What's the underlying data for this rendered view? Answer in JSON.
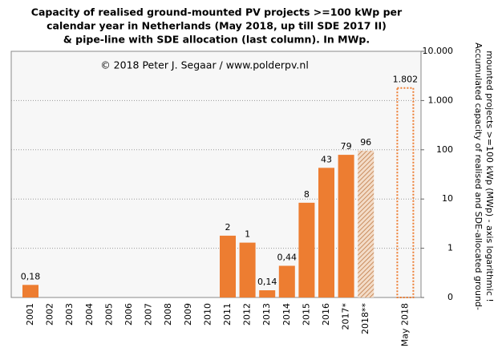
{
  "chart_data": {
    "type": "bar",
    "title": [
      "Capacity of realised ground-mounted PV projects >=100 kWp per",
      "calendar year in Netherlands (May 2018, up till SDE 2017 II)",
      "& pipe-line with SDE allocation (last column). In MWp."
    ],
    "annotation": "© 2018 Peter J. Segaar / www.polderpv.nl",
    "y_label": [
      "Accumulated capacity of realised and SDE-allocated ground-",
      "mounted projects >=100 kWp (MWp) - axis logarithmic !"
    ],
    "categories": [
      "2001",
      "2002",
      "2003",
      "2004",
      "2005",
      "2006",
      "2007",
      "2008",
      "2009",
      "2010",
      "2011",
      "2012",
      "2013",
      "2014",
      "2015",
      "2016",
      "2017*",
      "2018**",
      null,
      "May 2018"
    ],
    "values": [
      0.18,
      null,
      null,
      null,
      null,
      null,
      null,
      null,
      null,
      null,
      1.8,
      1.3,
      0.14,
      0.44,
      8.4,
      43,
      79,
      96,
      null,
      1802
    ],
    "value_labels": [
      "0,18",
      null,
      null,
      null,
      null,
      null,
      null,
      null,
      null,
      null,
      "2",
      "1",
      "0,14",
      "0,44",
      "8",
      "43",
      "79",
      "96",
      null,
      "1.802"
    ],
    "bar_styles": [
      "solid",
      null,
      null,
      null,
      null,
      null,
      null,
      null,
      null,
      null,
      "solid",
      "solid",
      "solid",
      "solid",
      "solid",
      "solid",
      "solid",
      "hatched",
      null,
      "outline"
    ],
    "color": "#ed7d31",
    "log_scale": true,
    "ylim": [
      0.1,
      10000
    ],
    "yticks": [
      {
        "value": 0.1,
        "label": "0"
      },
      1,
      10,
      100,
      {
        "value": 1000,
        "label": "1.000"
      },
      {
        "value": 10000,
        "label": "10.000"
      }
    ],
    "grid": true
  }
}
